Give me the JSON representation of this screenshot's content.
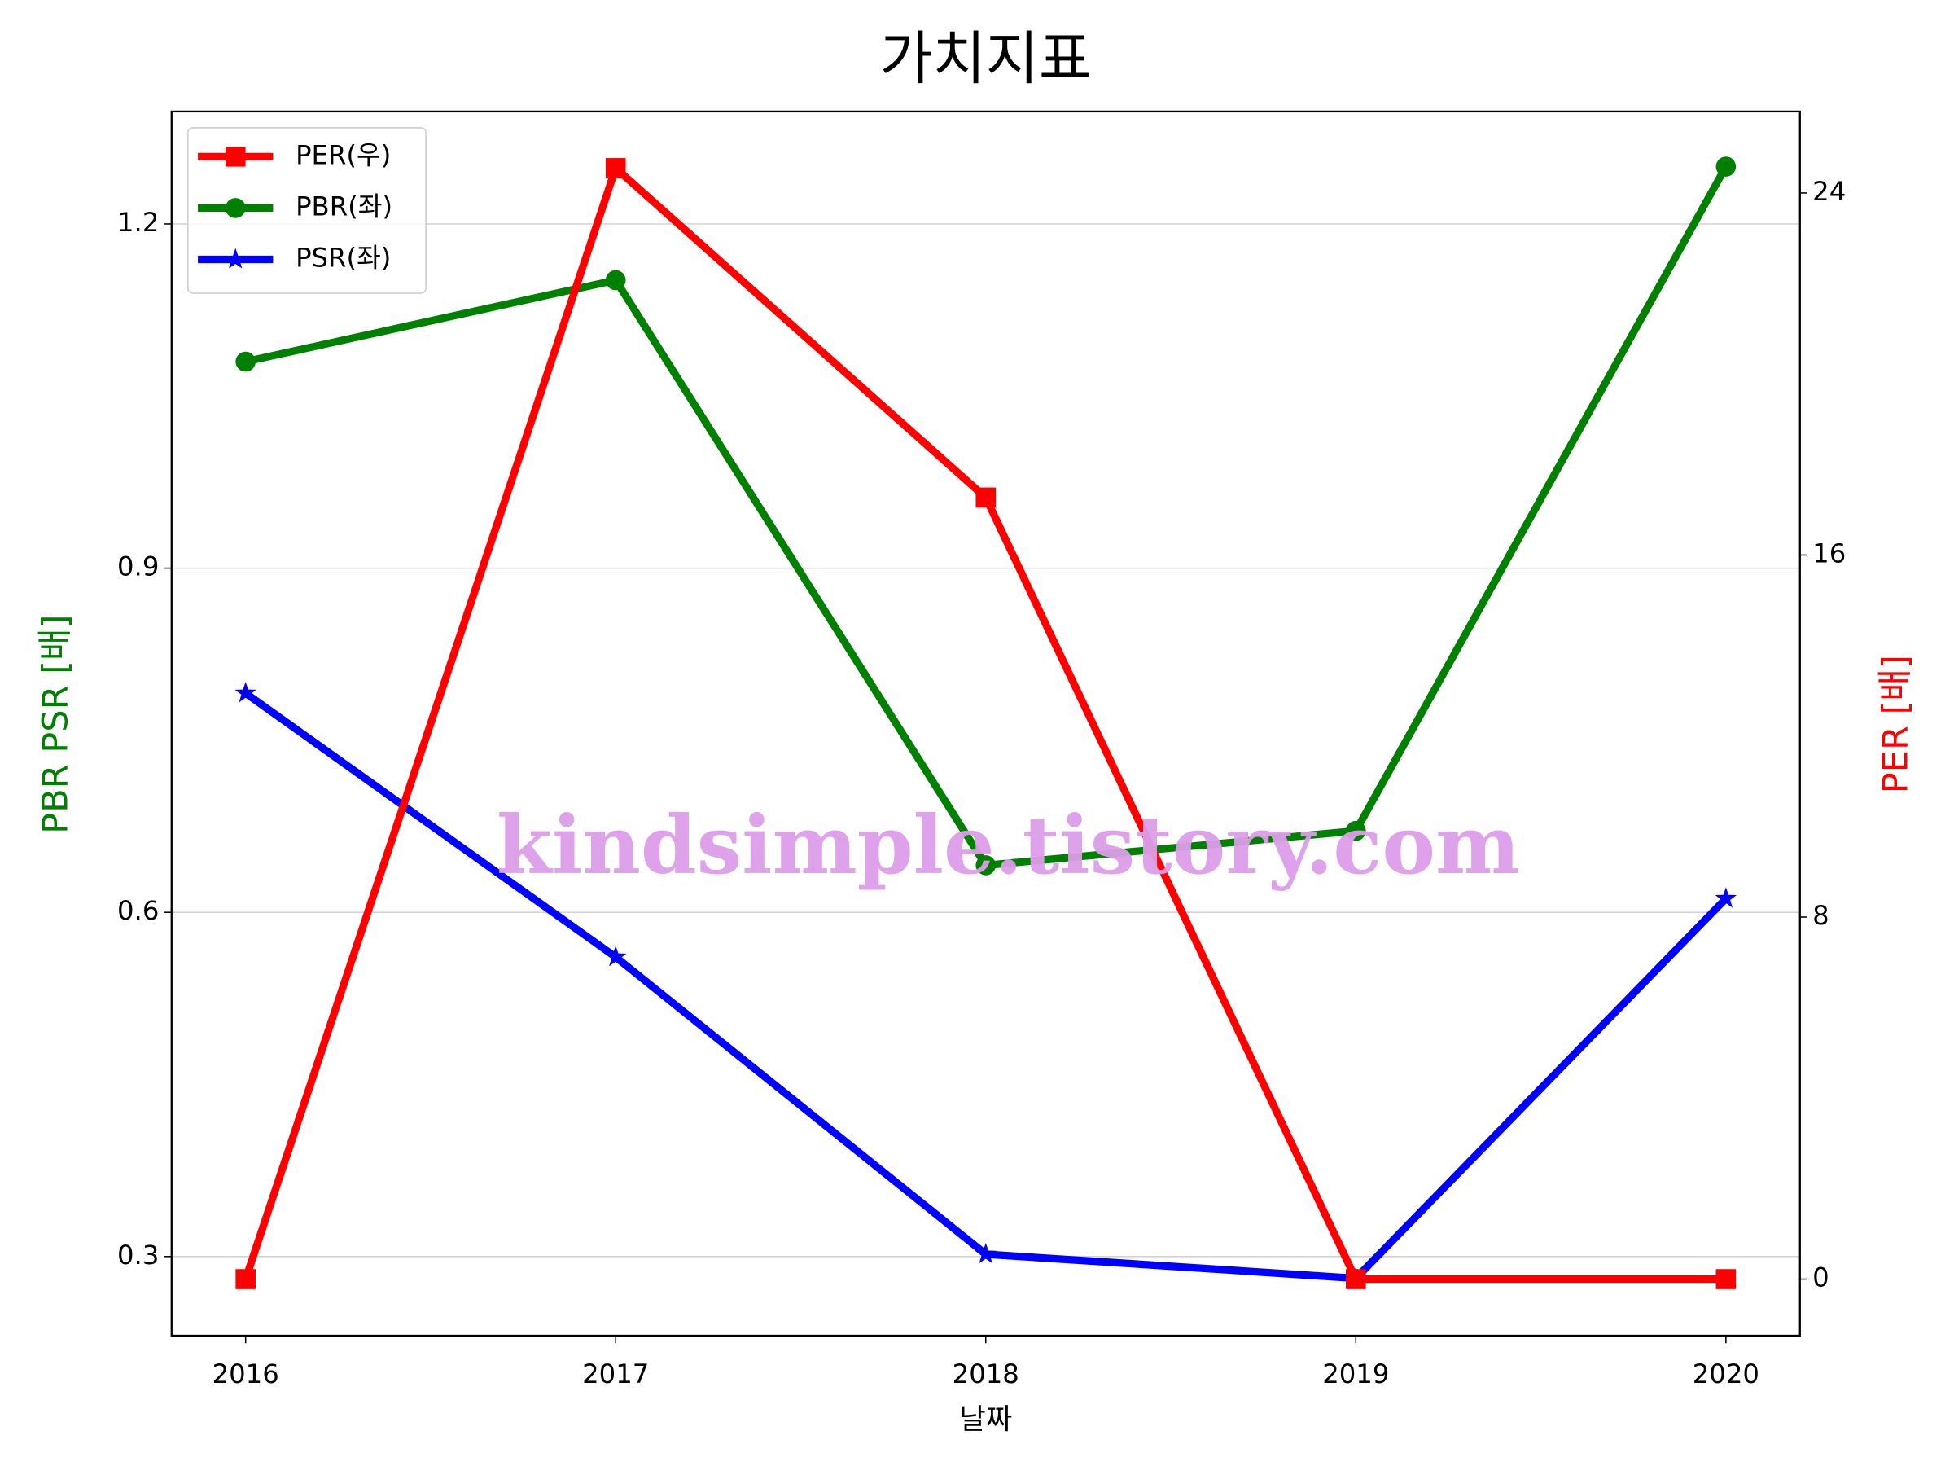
{
  "chart_data": {
    "type": "line",
    "title": "가치지표",
    "x_label": "날짜",
    "y_label": "PBR PSR [배]",
    "y2_label": "PER [배]",
    "categories": [
      "2016",
      "2017",
      "2018",
      "2019",
      "2020"
    ],
    "series": [
      {
        "name": "PER(우)",
        "color": "#ff0000",
        "marker": "square",
        "axis": "y2",
        "values": [
          0,
          24.55,
          17.27,
          0,
          0
        ]
      },
      {
        "name": "PBR(좌)",
        "color": "#008000",
        "marker": "circle",
        "values": [
          1.08,
          1.151,
          0.641,
          0.671,
          1.25
        ]
      },
      {
        "name": "PSR(좌)",
        "color": "#0000ff",
        "marker": "star",
        "values": [
          0.791,
          0.561,
          0.302,
          0.281,
          0.612
        ]
      }
    ],
    "ylim": [
      0.231,
      1.298
    ],
    "yticks": [
      0.3,
      0.6,
      0.9,
      1.2
    ],
    "y2lim": [
      -1.25,
      25.8
    ],
    "y2ticks": [
      0,
      8,
      16,
      24
    ],
    "grid": true,
    "legend": "upper left",
    "watermark": "kindsimple.tistory.com"
  }
}
